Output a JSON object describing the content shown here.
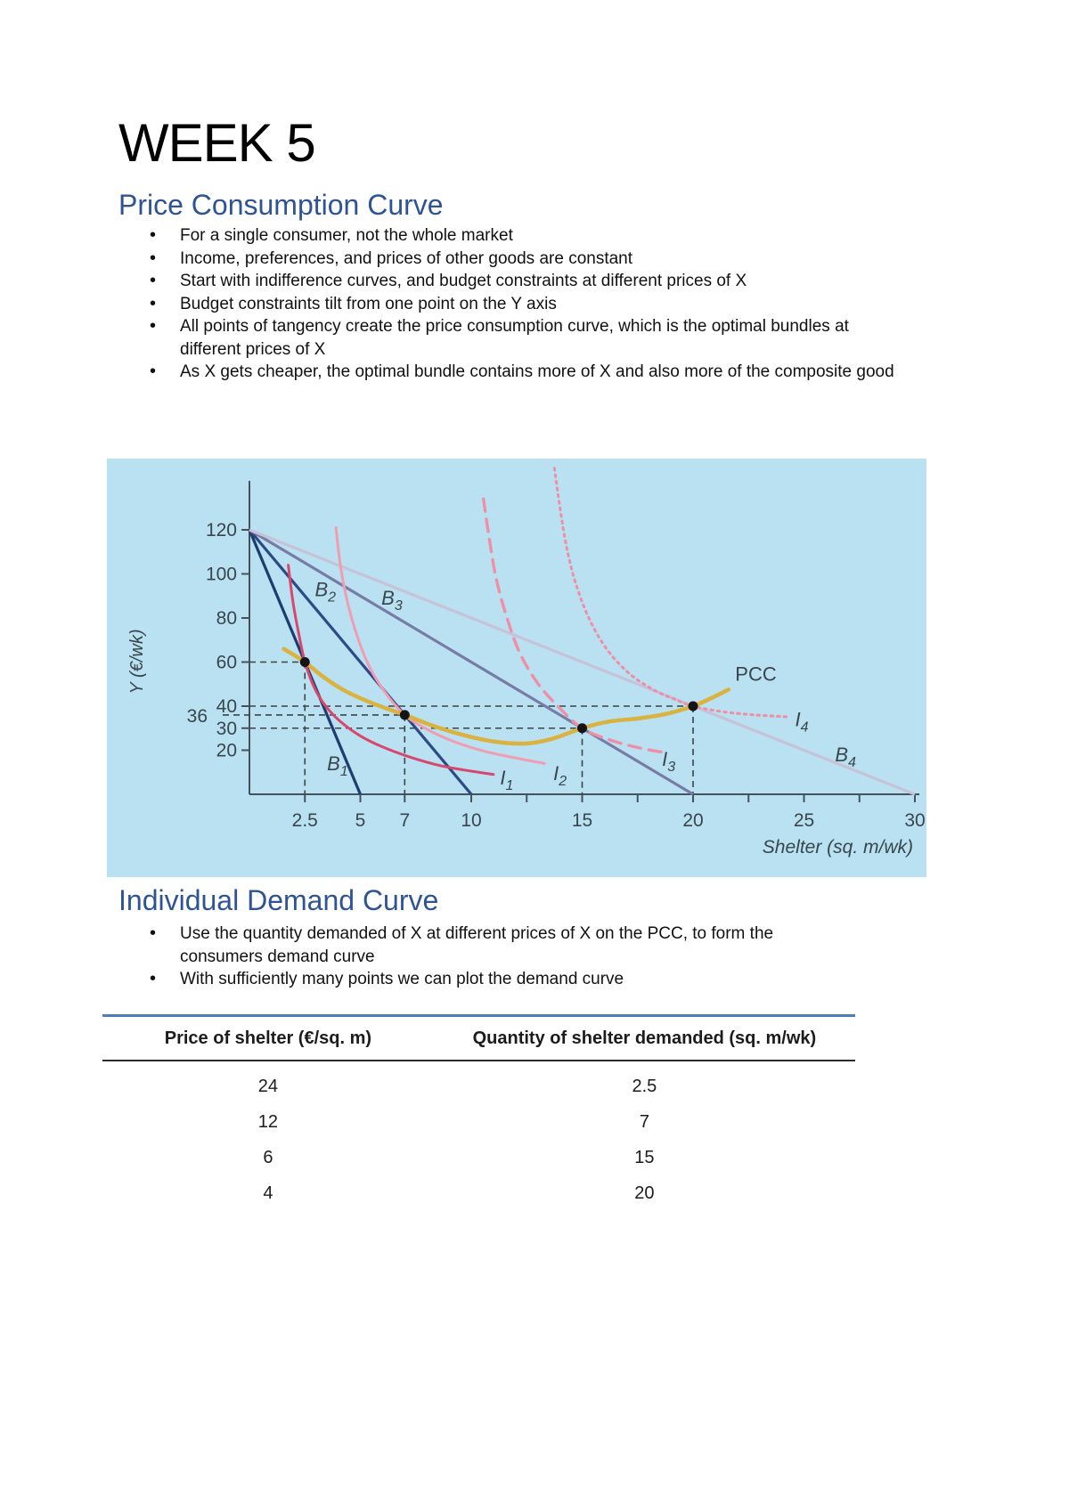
{
  "page": {
    "title": "WEEK 5"
  },
  "colors": {
    "heading_accent": "#2F5496",
    "chart_background": "#b9e1f1",
    "table_top_border": "#4a7ebb"
  },
  "sections": [
    {
      "heading": "Price Consumption Curve",
      "bullets": [
        "For a single consumer, not the whole market",
        "Income, preferences, and prices of other goods are constant",
        "Start with indifference curves, and budget constraints at different prices of X",
        "Budget constraints tilt from one point on the Y axis",
        "All points of tangency create the price consumption curve, which is the optimal bundles at different prices of X",
        "As X gets cheaper, the optimal bundle contains more of X and also more of the composite good"
      ]
    },
    {
      "heading": "Individual Demand Curve",
      "bullets": [
        "Use the quantity demanded of X at different prices of X on the PCC, to form the consumers demand curve",
        "With sufficiently many points we can plot the demand curve"
      ]
    }
  ],
  "chart_data": {
    "type": "line",
    "title": "",
    "xlabel": "Shelter (sq. m/wk)",
    "ylabel": "Y (€/wk)",
    "xlim": [
      0,
      31
    ],
    "ylim": [
      0,
      148
    ],
    "grid": false,
    "background": "#b9e1f1",
    "axis_color": "#46525a",
    "text_color": "#39454d",
    "guide_color": "#3c4446",
    "point_color": "#141414",
    "x_ticks_major": [
      {
        "v": 2.5,
        "label": "2.5"
      },
      {
        "v": 5,
        "label": "5"
      },
      {
        "v": 7,
        "label": "7"
      },
      {
        "v": 10,
        "label": "10"
      },
      {
        "v": 15,
        "label": "15"
      },
      {
        "v": 20,
        "label": "20"
      },
      {
        "v": 25,
        "label": "25"
      },
      {
        "v": 30,
        "label": "30"
      }
    ],
    "x_ticks_minor": [
      12.5,
      17.5,
      22.5,
      27.5
    ],
    "y_ticks": [
      {
        "v": 120,
        "label": "120"
      },
      {
        "v": 100,
        "label": "100"
      },
      {
        "v": 80,
        "label": "80"
      },
      {
        "v": 60,
        "label": "60"
      },
      {
        "v": 40,
        "label": "40"
      },
      {
        "v": 30,
        "label": "30"
      },
      {
        "v": 20,
        "label": "20"
      }
    ],
    "y_extra_label": {
      "v": 36,
      "label": "36"
    },
    "budget_lines": [
      {
        "label": "B",
        "sub": "1",
        "x_intercept": 5,
        "y_intercept": 120,
        "color": "#1e3c6e",
        "label_at": [
          3.5,
          11
        ]
      },
      {
        "label": "B",
        "sub": "2",
        "x_intercept": 10,
        "y_intercept": 120,
        "color": "#2d4a85",
        "label_at": [
          2.95,
          90
        ]
      },
      {
        "label": "B",
        "sub": "3",
        "x_intercept": 20,
        "y_intercept": 120,
        "color": "#767ca6",
        "label_at": [
          5.95,
          86
        ]
      },
      {
        "label": "B",
        "sub": "4",
        "x_intercept": 30,
        "y_intercept": 120,
        "color": "#c6c2d8",
        "label_at": [
          26.4,
          15
        ]
      }
    ],
    "indifference_curves": [
      {
        "label": "I",
        "sub": "1",
        "color": "#d8476e",
        "dash": "none",
        "width": 3,
        "points": [
          [
            1.75,
            104
          ],
          [
            1.95,
            88
          ],
          [
            2.2,
            74
          ],
          [
            2.5,
            60
          ],
          [
            2.9,
            49
          ],
          [
            3.4,
            40.5
          ],
          [
            4.1,
            33
          ],
          [
            5,
            26.5
          ],
          [
            6,
            21.5
          ],
          [
            7.2,
            17
          ],
          [
            8.6,
            13
          ],
          [
            10,
            10.5
          ],
          [
            11,
            9
          ]
        ],
        "label_at": [
          11.3,
          4.5
        ]
      },
      {
        "label": "I",
        "sub": "2",
        "color": "#f19cb1",
        "dash": "none",
        "width": 3,
        "points": [
          [
            3.9,
            121
          ],
          [
            4.1,
            104
          ],
          [
            4.4,
            88
          ],
          [
            4.85,
            72
          ],
          [
            5.4,
            58
          ],
          [
            6.1,
            46.5
          ],
          [
            7,
            36
          ],
          [
            8,
            29.5
          ],
          [
            9.2,
            24
          ],
          [
            10.6,
            19.5
          ],
          [
            12,
            16.5
          ],
          [
            13.3,
            14
          ]
        ],
        "label_at": [
          13.7,
          6.5
        ]
      },
      {
        "label": "I",
        "sub": "3",
        "color": "#ef8fa6",
        "dash": "14 9",
        "width": 3.4,
        "points": [
          [
            10.55,
            134
          ],
          [
            10.8,
            117
          ],
          [
            11.1,
            99
          ],
          [
            11.55,
            82
          ],
          [
            12.15,
            65
          ],
          [
            12.95,
            51
          ],
          [
            13.9,
            40
          ],
          [
            15,
            30
          ],
          [
            16.3,
            24.5
          ],
          [
            17.6,
            21
          ],
          [
            18.7,
            19
          ]
        ],
        "label_at": [
          18.6,
          13
        ]
      },
      {
        "label": "I",
        "sub": "4",
        "color": "#ef8fa6",
        "dash": "2.5 5",
        "width": 3,
        "points": [
          [
            13.75,
            148
          ],
          [
            14,
            130
          ],
          [
            14.3,
            112
          ],
          [
            14.7,
            96
          ],
          [
            15.3,
            80
          ],
          [
            16.1,
            66
          ],
          [
            17.1,
            55
          ],
          [
            18.2,
            47.5
          ],
          [
            19.2,
            43
          ],
          [
            20,
            40
          ],
          [
            21.3,
            37.5
          ],
          [
            22.8,
            36
          ],
          [
            24.2,
            35.2
          ]
        ],
        "label_at": [
          24.6,
          31
        ]
      }
    ],
    "pcc": {
      "label": "PCC",
      "color": "#d9b23f",
      "width": 4.5,
      "points": [
        [
          1.55,
          66
        ],
        [
          2.5,
          60
        ],
        [
          3.3,
          53.5
        ],
        [
          4.3,
          47
        ],
        [
          5.5,
          41.5
        ],
        [
          7,
          36
        ],
        [
          8.3,
          31
        ],
        [
          9.6,
          27
        ],
        [
          11,
          24
        ],
        [
          12.4,
          23
        ],
        [
          13.6,
          25
        ],
        [
          15,
          30
        ],
        [
          16.2,
          33
        ],
        [
          17.6,
          34.5
        ],
        [
          18.8,
          36.5
        ],
        [
          20,
          40
        ],
        [
          20.8,
          43.5
        ],
        [
          21.6,
          47.5
        ]
      ],
      "label_at": [
        21.9,
        51.5
      ]
    },
    "tangency_points": [
      {
        "x": 2.5,
        "y": 60
      },
      {
        "x": 7,
        "y": 36,
        "extend_left": true
      },
      {
        "x": 15,
        "y": 30
      },
      {
        "x": 20,
        "y": 40
      }
    ]
  },
  "table": {
    "headers": [
      "Price of shelter (€/sq. m)",
      "Quantity of shelter demanded (sq. m/wk)"
    ],
    "rows": [
      [
        "24",
        "2.5"
      ],
      [
        "12",
        "7"
      ],
      [
        "6",
        "15"
      ],
      [
        "4",
        "20"
      ]
    ]
  }
}
